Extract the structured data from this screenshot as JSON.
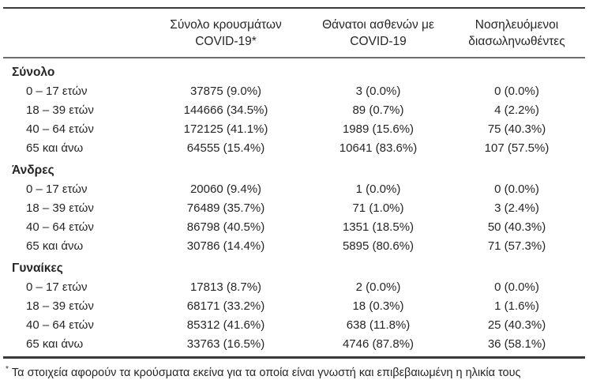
{
  "table": {
    "columns": [
      {
        "line1": "Σύνολο κρουσμάτων",
        "line2": "COVID-19*"
      },
      {
        "line1": "Θάνατοι ασθενών με",
        "line2": "COVID-19"
      },
      {
        "line1": "Νοσηλευόμενοι",
        "line2": "διασωληνωθέντες"
      }
    ],
    "groups": [
      {
        "label": "Σύνολο",
        "rows": [
          {
            "label": "0 – 17 ετών",
            "cases": "37875 (9.0%)",
            "deaths": "3 (0.0%)",
            "intubated": "0 (0.0%)"
          },
          {
            "label": "18 – 39 ετών",
            "cases": "144666 (34.5%)",
            "deaths": "89 (0.7%)",
            "intubated": "4 (2.2%)"
          },
          {
            "label": "40 – 64 ετών",
            "cases": "172125 (41.1%)",
            "deaths": "1989 (15.6%)",
            "intubated": "75 (40.3%)"
          },
          {
            "label": "65 και άνω",
            "cases": "64555 (15.4%)",
            "deaths": "10641 (83.6%)",
            "intubated": "107 (57.5%)"
          }
        ]
      },
      {
        "label": "Άνδρες",
        "rows": [
          {
            "label": "0 – 17 ετών",
            "cases": "20060 (9.4%)",
            "deaths": "1 (0.0%)",
            "intubated": "0 (0.0%)"
          },
          {
            "label": "18 – 39 ετών",
            "cases": "76489 (35.7%)",
            "deaths": "71 (1.0%)",
            "intubated": "3 (2.4%)"
          },
          {
            "label": "40 – 64 ετών",
            "cases": "86798 (40.5%)",
            "deaths": "1351 (18.5%)",
            "intubated": "50 (40.3%)"
          },
          {
            "label": "65 και άνω",
            "cases": "30786 (14.4%)",
            "deaths": "5895 (80.6%)",
            "intubated": "71 (57.3%)"
          }
        ]
      },
      {
        "label": "Γυναίκες",
        "rows": [
          {
            "label": "0 – 17 ετών",
            "cases": "17813 (8.7%)",
            "deaths": "2 (0.0%)",
            "intubated": "0 (0.0%)"
          },
          {
            "label": "18 – 39 ετών",
            "cases": "68171 (33.2%)",
            "deaths": "18 (0.3%)",
            "intubated": "1 (1.6%)"
          },
          {
            "label": "40 – 64 ετών",
            "cases": "85312 (41.6%)",
            "deaths": "638 (11.8%)",
            "intubated": "25 (40.3%)"
          },
          {
            "label": "65 και άνω",
            "cases": "33763 (16.5%)",
            "deaths": "4746 (87.8%)",
            "intubated": "36 (58.1%)"
          }
        ]
      }
    ],
    "footnote": {
      "marker": "*",
      "text": "Τα στοιχεία αφορούν τα κρούσματα εκείνα για τα οποία είναι γνωστή και επιβεβαιωμένη η ηλικία τους"
    },
    "colors": {
      "text": "#262626",
      "rule_dark": "#3a3a3a",
      "rule_mid": "#6e6e6e"
    }
  }
}
